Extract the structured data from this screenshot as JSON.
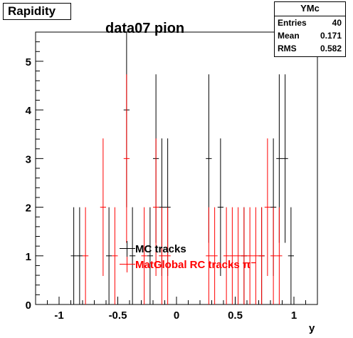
{
  "hist_title": "Rapidity",
  "stats": {
    "name": "YMc",
    "rows": [
      {
        "label": "Entries",
        "value": "40"
      },
      {
        "label": "Mean",
        "value": "0.171"
      },
      {
        "label": "RMS",
        "value": "0.582"
      }
    ]
  },
  "chart_data": {
    "type": "histogram-errorbars",
    "title": "data07 pion",
    "xlabel": "y",
    "ylabel": "",
    "xlim": [
      -1.2,
      1.2
    ],
    "ylim": [
      0,
      5.6
    ],
    "bin_width": 0.05,
    "x_ticks": [
      -1,
      -0.5,
      0,
      0.5,
      1
    ],
    "x_tick_labels": [
      "-1",
      "-0.5",
      "0",
      "0.5",
      "1"
    ],
    "y_ticks": [
      0,
      1,
      2,
      3,
      4,
      5
    ],
    "y_tick_labels": [
      "0",
      "1",
      "2",
      "3",
      "4",
      "5"
    ],
    "grid": false,
    "legend_position": "bottom-center",
    "series": [
      {
        "name": "MC tracks",
        "color": "#000000",
        "points": [
          {
            "x": -0.875,
            "y": 1
          },
          {
            "x": -0.825,
            "y": 1
          },
          {
            "x": -0.575,
            "y": 1
          },
          {
            "x": -0.425,
            "y": 4
          },
          {
            "x": -0.375,
            "y": 1
          },
          {
            "x": -0.225,
            "y": 1
          },
          {
            "x": -0.175,
            "y": 3
          },
          {
            "x": -0.125,
            "y": 2
          },
          {
            "x": -0.075,
            "y": 2
          },
          {
            "x": 0.275,
            "y": 3
          },
          {
            "x": 0.375,
            "y": 2
          },
          {
            "x": 0.575,
            "y": 1
          },
          {
            "x": 0.725,
            "y": 1
          },
          {
            "x": 0.825,
            "y": 2
          },
          {
            "x": 0.875,
            "y": 3
          },
          {
            "x": 0.925,
            "y": 3
          },
          {
            "x": 0.975,
            "y": 1
          }
        ]
      },
      {
        "name": "MatGlobal RC tracks π⁻",
        "color": "#ff0000",
        "points": [
          {
            "x": -0.775,
            "y": 1
          },
          {
            "x": -0.625,
            "y": 2
          },
          {
            "x": -0.525,
            "y": 1
          },
          {
            "x": -0.425,
            "y": 3
          },
          {
            "x": -0.275,
            "y": 1
          },
          {
            "x": -0.175,
            "y": 2
          },
          {
            "x": -0.125,
            "y": 1
          },
          {
            "x": -0.075,
            "y": 1
          },
          {
            "x": 0.275,
            "y": 1
          },
          {
            "x": 0.325,
            "y": 1
          },
          {
            "x": 0.425,
            "y": 1
          },
          {
            "x": 0.475,
            "y": 1
          },
          {
            "x": 0.525,
            "y": 1
          },
          {
            "x": 0.575,
            "y": 1
          },
          {
            "x": 0.625,
            "y": 1
          },
          {
            "x": 0.675,
            "y": 1
          },
          {
            "x": 0.725,
            "y": 1
          },
          {
            "x": 0.775,
            "y": 2
          },
          {
            "x": 0.825,
            "y": 1
          },
          {
            "x": 0.875,
            "y": 1
          }
        ]
      }
    ]
  }
}
